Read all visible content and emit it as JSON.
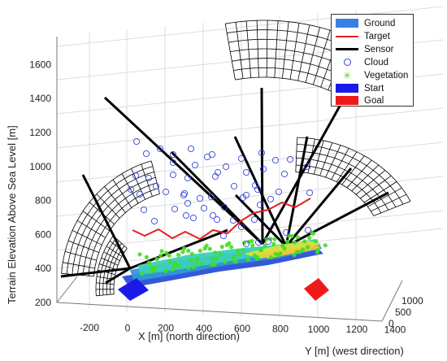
{
  "chart_data": {
    "type": "3d-scatter-surface",
    "xlabel": "X [m] (north direction)",
    "ylabel": "Y [m] (west direction)",
    "zlabel": "Terrain Elevation Above Sea Level [m]",
    "x_ticks": [
      "-200",
      "0",
      "200",
      "400",
      "600",
      "800",
      "1000",
      "1200",
      "1400"
    ],
    "y_ticks": [
      "0",
      "500",
      "1000"
    ],
    "z_ticks": [
      "200",
      "400",
      "600",
      "800",
      "1000",
      "1200",
      "1400",
      "1600"
    ],
    "xlim": [
      -300,
      1400
    ],
    "ylim": [
      0,
      1000
    ],
    "zlim": [
      200,
      1650
    ],
    "grid": true,
    "legend_position": "top-right",
    "legend": [
      {
        "name": "Ground",
        "kind": "patch",
        "color": "#3a7fe6"
      },
      {
        "name": "Target",
        "kind": "line",
        "color": "#e52020"
      },
      {
        "name": "Sensor",
        "kind": "line",
        "color": "#000000"
      },
      {
        "name": "Cloud",
        "kind": "circle",
        "color": "#3344dd"
      },
      {
        "name": "Vegetation",
        "kind": "star",
        "color": "#44dd22"
      },
      {
        "name": "Start",
        "kind": "patch",
        "color": "#1a1ae6"
      },
      {
        "name": "Goal",
        "kind": "patch",
        "color": "#ee1a1a"
      }
    ]
  }
}
